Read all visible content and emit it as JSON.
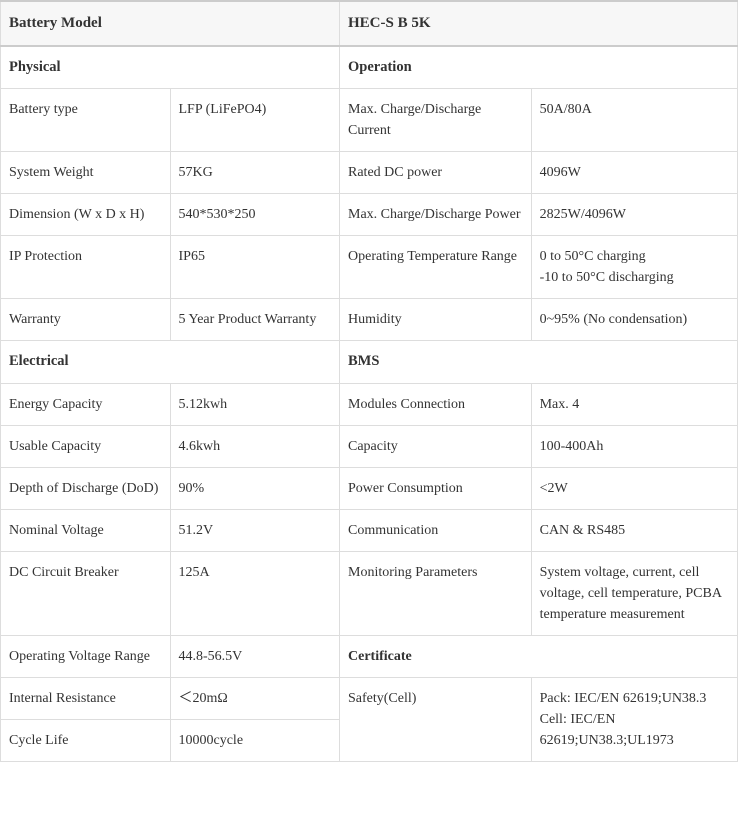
{
  "header": {
    "left": "Battery Model",
    "right": "HEC-S B 5K"
  },
  "sections": {
    "physical": "Physical",
    "operation": "Operation",
    "electrical": "Electrical",
    "bms": "BMS",
    "certificate": "Certificate"
  },
  "rows": {
    "r1": {
      "a": "Battery type",
      "b": "LFP (LiFePO4)",
      "c": "Max. Charge/Discharge Current",
      "d": "50A/80A"
    },
    "r2": {
      "a": "System Weight",
      "b": "57KG",
      "c": "Rated DC power",
      "d": "4096W"
    },
    "r3": {
      "a": "Dimension (W x D x H)",
      "b": "540*530*250",
      "c": "Max. Charge/Discharge Power",
      "d": "2825W/4096W"
    },
    "r4": {
      "a": "IP Protection",
      "b": "IP65",
      "c": "Operating Temperature Range",
      "d": "0 to 50°C charging\n-10 to 50°C discharging"
    },
    "r5": {
      "a": "Warranty",
      "b": "5 Year Product Warranty",
      "c": "Humidity",
      "d": "0~95% (No condensation)"
    },
    "r6": {
      "a": "Energy Capacity",
      "b": "5.12kwh",
      "c": "Modules Connection",
      "d": "Max. 4"
    },
    "r7": {
      "a": "Usable Capacity",
      "b": "4.6kwh",
      "c": "Capacity",
      "d": "100-400Ah"
    },
    "r8": {
      "a": "Depth of Discharge (DoD)",
      "b": "90%",
      "c": "Power Consumption",
      "d": "<2W"
    },
    "r9": {
      "a": "Nominal Voltage",
      "b": "51.2V",
      "c": "Communication",
      "d": "CAN & RS485"
    },
    "r10": {
      "a": "DC Circuit Breaker",
      "b": "125A",
      "c": "Monitoring Parameters",
      "d": "System voltage, current, cell voltage, cell temperature, PCBA temperature measurement"
    },
    "r11": {
      "a": "Operating Voltage Range",
      "b": "44.8-56.5V"
    },
    "r12": {
      "a": "Internal Resistance",
      "b": "＜20mΩ",
      "c": "Safety(Cell)",
      "d": "Pack: IEC/EN 62619;UN38.3\nCell: IEC/EN 62619;UN38.3;UL1973"
    },
    "r13": {
      "a": "Cycle Life",
      "b": "10000cycle"
    }
  }
}
